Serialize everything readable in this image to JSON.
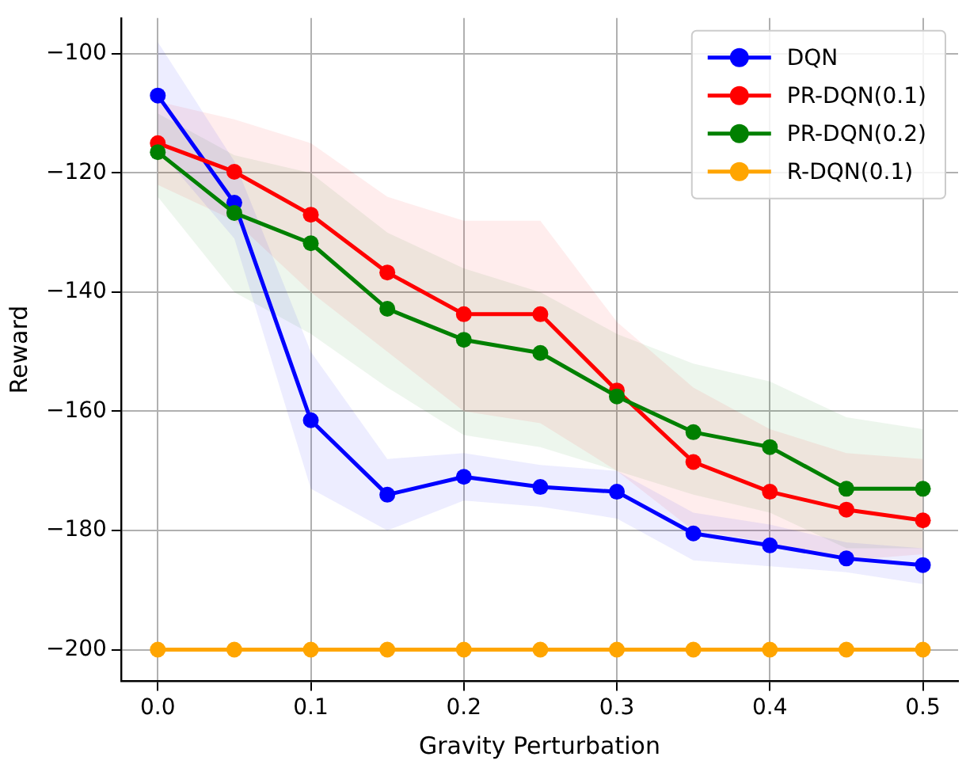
{
  "chart_data": {
    "type": "line",
    "xlabel": "Gravity Perturbation",
    "ylabel": "Reward",
    "x": [
      0,
      0.05,
      0.1,
      0.15,
      0.2,
      0.25,
      0.3,
      0.35,
      0.4,
      0.45,
      0.5
    ],
    "xlim": [
      -0.024,
      0.523
    ],
    "xticks": [
      {
        "value": 0,
        "label": "0.0"
      },
      0.1,
      0.2,
      0.3,
      0.4,
      0.5
    ],
    "ylim": [
      -205.3,
      -94
    ],
    "yticks": [
      -200,
      -180,
      -160,
      -140,
      -120,
      -100
    ],
    "grid": true,
    "legend": "top right",
    "marker": "circle",
    "line_style": "solid",
    "series": [
      {
        "name": "DQN",
        "color": "#0000ff",
        "values": [
          -107,
          -125,
          -161.5,
          -174,
          -171,
          -172.7,
          -173.5,
          -180.5,
          -182.5,
          -184.7,
          -185.8
        ],
        "lower": [
          -116,
          -131,
          -173,
          -180,
          -175,
          -176,
          -178,
          -185,
          -186,
          -187,
          -189
        ],
        "upper": [
          -98,
          -118,
          -150,
          -168,
          -167,
          -169,
          -170,
          -177,
          -179,
          -182,
          -183
        ]
      },
      {
        "name": "PR-DQN(0.1)",
        "color": "#ff0000",
        "values": [
          -115,
          -119.8,
          -127,
          -136.7,
          -143.7,
          -143.7,
          -156.5,
          -168.5,
          -173.5,
          -176.5,
          -178.3
        ],
        "lower": [
          -122,
          -128,
          -140,
          -150,
          -160,
          -162,
          -170,
          -180,
          -182,
          -185,
          -184
        ],
        "upper": [
          -108,
          -111,
          -115,
          -124,
          -128,
          -128,
          -145,
          -156,
          -163,
          -167,
          -168
        ]
      },
      {
        "name": "PR-DQN(0.2)",
        "color": "#008000",
        "values": [
          -116.5,
          -126.7,
          -131.8,
          -142.8,
          -148,
          -150.2,
          -157.5,
          -163.5,
          -166,
          -173,
          -173
        ],
        "lower": [
          -124,
          -140,
          -147,
          -156,
          -164,
          -166,
          -170,
          -174,
          -177,
          -183,
          -183
        ],
        "upper": [
          -110,
          -117,
          -120,
          -130,
          -136,
          -140,
          -147,
          -152,
          -155,
          -161,
          -163
        ]
      },
      {
        "name": "R-DQN(0.1)",
        "color": "#ffa500",
        "values": [
          -200,
          -200,
          -200,
          -200,
          -200,
          -200,
          -200,
          -200,
          -200,
          -200,
          -200
        ]
      }
    ]
  }
}
